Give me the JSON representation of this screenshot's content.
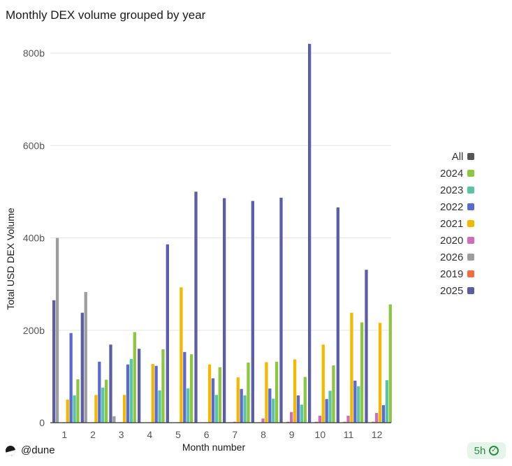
{
  "chart_data": {
    "type": "bar",
    "title": "Monthly DEX volume grouped by year",
    "xlabel": "Month number",
    "ylabel": "Total USD DEX Volume",
    "ylim": [
      0,
      800
    ],
    "yunit": "b",
    "yticks": [
      0,
      200,
      400,
      600,
      800
    ],
    "ytick_labels": [
      "0",
      "200b",
      "400b",
      "600b",
      "800b"
    ],
    "categories": [
      "1",
      "2",
      "3",
      "4",
      "5",
      "6",
      "7",
      "8",
      "9",
      "10",
      "11",
      "12"
    ],
    "grid": true,
    "legend_position": "right",
    "series": [
      {
        "name": "2025",
        "color": "#5b5ea6",
        "values": [
          265,
          238,
          169,
          160,
          386,
          500,
          486,
          480,
          487,
          820,
          466,
          331
        ]
      },
      {
        "name": "2026",
        "color": "#9e9e9e",
        "values": [
          400,
          283,
          14,
          null,
          null,
          null,
          null,
          null,
          null,
          null,
          null,
          null
        ]
      },
      {
        "name": "2019",
        "color": "#f26c3d",
        "values": [
          null,
          null,
          null,
          null,
          null,
          null,
          1,
          1,
          2,
          2,
          2,
          2
        ]
      },
      {
        "name": "2020",
        "color": "#d16cb8",
        "values": [
          1,
          1,
          1,
          1,
          1,
          1,
          2,
          9,
          23,
          15,
          15,
          21
        ]
      },
      {
        "name": "2021",
        "color": "#f5b800",
        "values": [
          50,
          60,
          60,
          127,
          293,
          126,
          98,
          131,
          137,
          169,
          238,
          216
        ]
      },
      {
        "name": "2022",
        "color": "#5b6ad0",
        "values": [
          194,
          132,
          126,
          123,
          153,
          96,
          73,
          74,
          59,
          51,
          91,
          38
        ]
      },
      {
        "name": "2023",
        "color": "#5bc4a8",
        "values": [
          59,
          76,
          138,
          70,
          74,
          60,
          59,
          52,
          39,
          69,
          79,
          92
        ]
      },
      {
        "name": "2024",
        "color": "#8dc63f",
        "values": [
          94,
          93,
          196,
          159,
          148,
          120,
          130,
          132,
          99,
          124,
          217,
          256
        ]
      }
    ]
  },
  "legend": [
    {
      "label": "All",
      "color": "#555555"
    },
    {
      "label": "2024",
      "color": "#8dc63f"
    },
    {
      "label": "2023",
      "color": "#5bc4a8"
    },
    {
      "label": "2022",
      "color": "#5b6ad0"
    },
    {
      "label": "2021",
      "color": "#f5b800"
    },
    {
      "label": "2020",
      "color": "#d16cb8"
    },
    {
      "label": "2026",
      "color": "#9e9e9e"
    },
    {
      "label": "2019",
      "color": "#f26c3d"
    },
    {
      "label": "2025",
      "color": "#5b5ea6"
    }
  ],
  "footer": {
    "brand": "@dune",
    "freshness": "5h"
  }
}
